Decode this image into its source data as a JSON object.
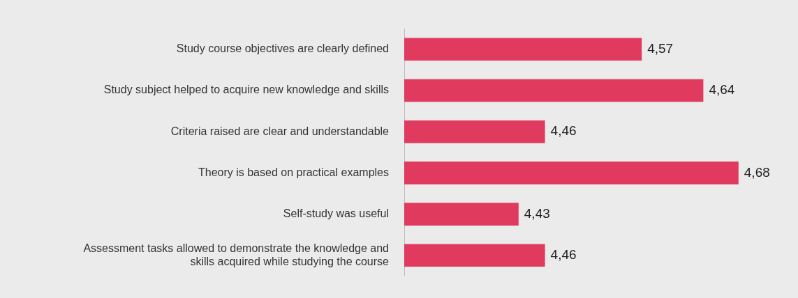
{
  "chart_data": {
    "type": "bar",
    "orientation": "horizontal",
    "categories": [
      "Study course objectives are clearly defined",
      "Study subject helped to acquire new knowledge and skills",
      "Criteria raised are clear and understandable",
      "Theory is based on practical examples",
      "Self-study was useful",
      "Assessment tasks allowed to demonstrate the knowledge and skills acquired while studying the course"
    ],
    "values": [
      4.57,
      4.64,
      4.46,
      4.68,
      4.43,
      4.46
    ],
    "value_labels": [
      "4,57",
      "4,64",
      "4,46",
      "4,68",
      "4,43",
      "4,46"
    ],
    "color": "#e03a5e",
    "tick_labels": "y",
    "grid": false,
    "legend": false
  }
}
